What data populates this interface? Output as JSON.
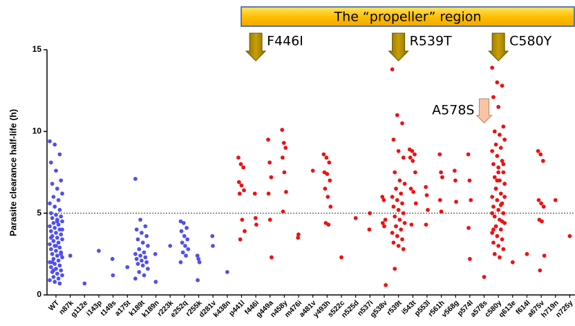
{
  "chart_data": {
    "type": "strip",
    "ylabel": "Parasite clearance half-life (h)",
    "region_label": "The “propeller” region",
    "reference_line": 5,
    "ylim": [
      0,
      15
    ],
    "yticks": [
      0,
      5,
      10,
      15
    ],
    "categories": [
      "WT",
      "n87k",
      "g112e",
      "i143p",
      "t149s",
      "a175t",
      "k189t",
      "k189n",
      "r223k",
      "e252q",
      "r255k",
      "d281v",
      "k438n",
      "p441l",
      "f446i",
      "g449a",
      "n458y",
      "m476i",
      "a481v",
      "y493h",
      "s522c",
      "n525d",
      "n537i",
      "g538v",
      "r539t",
      "i543t",
      "p553l",
      "r561h",
      "v568g",
      "p574l",
      "a578s",
      "c580y",
      "q613e",
      "f614l",
      "a675v",
      "h719n",
      "n725y"
    ],
    "colors": [
      "#5050ee",
      "#5050ee",
      "#5050ee",
      "#5050ee",
      "#5050ee",
      "#5050ee",
      "#5050ee",
      "#5050ee",
      "#5050ee",
      "#5050ee",
      "#5050ee",
      "#5050ee",
      "#5050ee",
      "#ee1111",
      "#ee1111",
      "#ee1111",
      "#ee1111",
      "#ee1111",
      "#ee1111",
      "#ee1111",
      "#ee1111",
      "#ee1111",
      "#ee1111",
      "#ee1111",
      "#ee1111",
      "#ee1111",
      "#ee1111",
      "#ee1111",
      "#ee1111",
      "#ee1111",
      "#ee1111",
      "#ee1111",
      "#ee1111",
      "#ee1111",
      "#ee1111",
      "#ee1111",
      "#ee1111"
    ],
    "values": [
      [
        9.4,
        9.2,
        8.6,
        8.1,
        7.6,
        7.0,
        6.8,
        6.5,
        6.2,
        6.0,
        5.8,
        5.6,
        5.4,
        5.2,
        5.0,
        4.9,
        4.8,
        4.7,
        4.6,
        4.5,
        4.4,
        4.3,
        4.2,
        4.1,
        4.0,
        3.9,
        3.8,
        3.7,
        3.6,
        3.5,
        3.4,
        3.3,
        3.2,
        3.1,
        3.0,
        2.9,
        2.8,
        2.7,
        2.6,
        2.5,
        2.4,
        2.3,
        2.2,
        2.1,
        2.0,
        1.9,
        1.8,
        1.7,
        1.6,
        1.5,
        1.4,
        1.3,
        1.2,
        1.1,
        1.0,
        0.9,
        0.8,
        0.7,
        3.5,
        3.0,
        2.5,
        2.0,
        4.5,
        4.0,
        1.5
      ],
      [
        2.4
      ],
      [
        0.7
      ],
      [
        2.7
      ],
      [
        2.2,
        1.2
      ],
      [
        1.7
      ],
      [
        7.1,
        4.6,
        4.2,
        4.0,
        3.8,
        3.6,
        3.4,
        3.2,
        3.0,
        2.8,
        2.6,
        2.5,
        2.4,
        2.3,
        2.2,
        2.1,
        2.0,
        1.9,
        1.8,
        1.6,
        1.4,
        1.2,
        1.0
      ],
      [
        2.5,
        0.8
      ],
      [
        3.0
      ],
      [
        4.5,
        4.4,
        4.1,
        3.9,
        3.6,
        3.4,
        3.2,
        3.0,
        2.8,
        2.6,
        2.4,
        2.0
      ],
      [
        2.4,
        2.2,
        2.0,
        0.9
      ],
      [
        3.6,
        3.0
      ],
      [
        1.4
      ],
      [
        8.4,
        8.0,
        7.8,
        6.9,
        6.7,
        6.4,
        6.2,
        4.6,
        3.9,
        3.4
      ],
      [
        6.2,
        4.7,
        4.3
      ],
      [
        9.5,
        8.1,
        7.2,
        6.2,
        4.6,
        2.3
      ],
      [
        10.1,
        9.3,
        9.0,
        8.4,
        7.5,
        6.3,
        5.1
      ],
      [
        3.5,
        3.7
      ],
      [
        7.6
      ],
      [
        8.6,
        8.4,
        8.1,
        7.5,
        7.4,
        7.0,
        6.5,
        6.0,
        5.4,
        4.4,
        4.3
      ],
      [
        2.3
      ],
      [
        4.7
      ],
      [
        4.0,
        5.0
      ],
      [
        6.0,
        5.8,
        4.6,
        4.4,
        4.2,
        0.6
      ],
      [
        13.8,
        11.0,
        10.5,
        9.5,
        8.8,
        8.4,
        7.5,
        7.0,
        6.8,
        6.5,
        6.2,
        6.0,
        5.8,
        5.6,
        5.4,
        5.2,
        5.0,
        4.8,
        4.6,
        4.4,
        4.2,
        4.0,
        3.8,
        3.6,
        3.4,
        3.2,
        3.0,
        2.8,
        1.6
      ],
      [
        8.9,
        8.8,
        8.6,
        8.4,
        8.2,
        7.5,
        6.5,
        6.3,
        5.6,
        4.3
      ],
      [
        6.6,
        6.1,
        5.2,
        4.3
      ],
      [
        8.6,
        7.5,
        7.2,
        5.8,
        5.1
      ],
      [
        7.6,
        7.0,
        5.7
      ],
      [
        8.6,
        7.0,
        5.8,
        4.1,
        2.2
      ],
      [
        1.1
      ],
      [
        13.9,
        13.0,
        12.8,
        12.1,
        11.5,
        10.3,
        10.0,
        9.8,
        9.5,
        9.2,
        9.0,
        8.8,
        8.5,
        8.2,
        8.0,
        7.8,
        7.5,
        7.2,
        7.0,
        6.8,
        6.5,
        6.2,
        6.0,
        5.8,
        5.6,
        5.4,
        5.2,
        5.0,
        4.8,
        4.6,
        4.4,
        4.2,
        4.0,
        3.8,
        3.6,
        3.4,
        3.2,
        3.0,
        2.8,
        2.5,
        2.3,
        6.0,
        6.5,
        5.5,
        5.0,
        7.0,
        4.5,
        4.0,
        7.5,
        8.0
      ],
      [
        2.0
      ],
      [
        2.5
      ],
      [
        8.8,
        8.6,
        8.2,
        5.8,
        5.6,
        5.4,
        4.6,
        4.5,
        2.4,
        1.5
      ],
      [
        5.8
      ],
      [
        3.6
      ]
    ],
    "annotations": [
      {
        "text": "F446I",
        "category": "f446i"
      },
      {
        "text": "R539T",
        "category": "r539t"
      },
      {
        "text": "C580Y",
        "category": "c580y"
      },
      {
        "text": "A578S",
        "category": "a578s"
      }
    ]
  }
}
